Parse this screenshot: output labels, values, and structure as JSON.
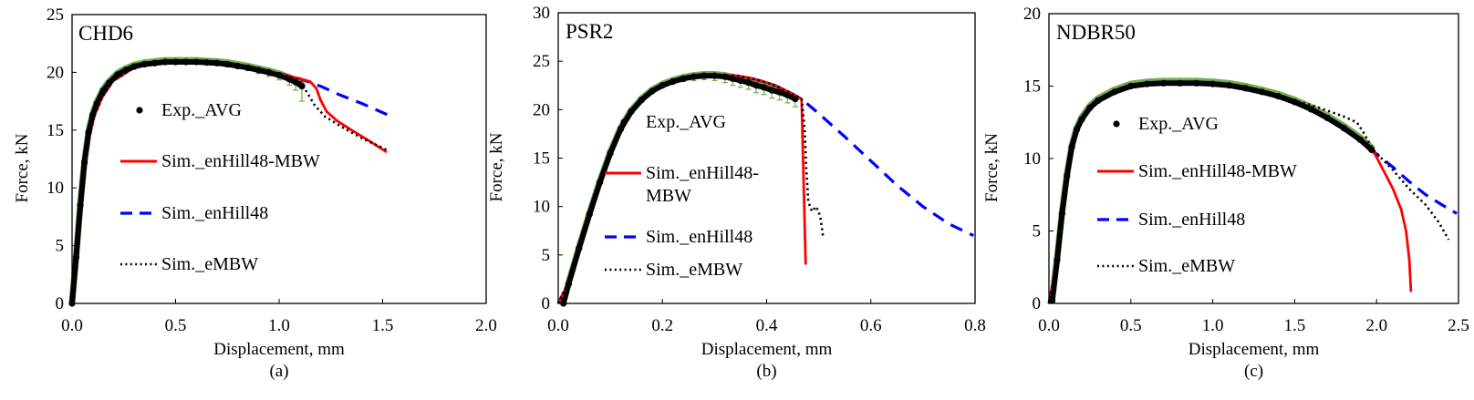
{
  "figure": {
    "legend_entries": [
      {
        "key": "exp",
        "label": "Exp._AVG",
        "style": "marker",
        "color": "#000000"
      },
      {
        "key": "mbw",
        "label": "Sim._enHill48-MBW",
        "style": "solid",
        "color": "#ff0000"
      },
      {
        "key": "hill",
        "label": "Sim._enHill48",
        "style": "dashed",
        "color": "#0000ff"
      },
      {
        "key": "embw",
        "label": "Sim._eMBW",
        "style": "dotted",
        "color": "#000000"
      }
    ],
    "errorbar_color": "#70ad47"
  },
  "chart_data": [
    {
      "type": "line",
      "title": "CHD6",
      "sublabel": "(a)",
      "xlabel": "Displacement, mm",
      "ylabel": "Force, kN",
      "xlim": [
        0,
        2.0
      ],
      "ylim": [
        0,
        25
      ],
      "xticks": [
        0,
        0.5,
        1.0,
        1.5,
        2.0
      ],
      "xtick_labels": [
        "0.0",
        "0.5",
        "1.0",
        "1.5",
        "2.0"
      ],
      "yticks": [
        0,
        5,
        10,
        15,
        20,
        25
      ],
      "ytick_labels": [
        "0",
        "5",
        "10",
        "15",
        "20",
        "25"
      ],
      "legend_labels": [
        "Exp._AVG",
        "Sim._enHill48-MBW",
        "Sim._enHill48",
        "Sim._eMBW"
      ],
      "grid": false,
      "series": [
        {
          "name": "Exp._AVG",
          "key": "exp",
          "x": [
            0.0,
            0.02,
            0.04,
            0.06,
            0.08,
            0.1,
            0.12,
            0.15,
            0.18,
            0.22,
            0.26,
            0.3,
            0.35,
            0.4,
            0.45,
            0.5,
            0.55,
            0.6,
            0.65,
            0.7,
            0.75,
            0.8,
            0.85,
            0.9,
            0.95,
            1.0,
            1.05,
            1.08,
            1.11
          ],
          "y": [
            0.0,
            4.0,
            8.5,
            12.2,
            14.8,
            16.3,
            17.3,
            18.4,
            19.1,
            19.8,
            20.2,
            20.5,
            20.7,
            20.8,
            20.9,
            20.9,
            20.9,
            20.9,
            20.85,
            20.8,
            20.7,
            20.55,
            20.4,
            20.2,
            20.0,
            19.75,
            19.4,
            19.15,
            18.8
          ],
          "yerr": [
            0,
            0,
            0,
            0,
            0,
            0,
            0,
            0,
            0,
            0,
            0,
            0,
            0,
            0,
            0,
            0,
            0,
            0,
            0,
            0,
            0.15,
            0.2,
            0.25,
            0.3,
            0.35,
            0.4,
            0.5,
            0.7,
            1.3
          ]
        },
        {
          "name": "Sim._enHill48-MBW",
          "key": "mbw",
          "x": [
            0.0,
            0.02,
            0.05,
            0.08,
            0.11,
            0.15,
            0.2,
            0.3,
            0.4,
            0.5,
            0.6,
            0.7,
            0.8,
            0.9,
            1.0,
            1.1,
            1.15,
            1.18,
            1.2,
            1.23,
            1.28,
            1.35,
            1.45,
            1.52
          ],
          "y": [
            0.0,
            4.2,
            10.0,
            14.2,
            16.4,
            18.0,
            19.3,
            20.4,
            20.8,
            20.9,
            20.9,
            20.8,
            20.6,
            20.25,
            19.9,
            19.45,
            19.2,
            18.6,
            17.6,
            16.6,
            15.8,
            15.0,
            13.9,
            13.1
          ]
        },
        {
          "name": "Sim._enHill48",
          "key": "hill",
          "x": [
            0.0,
            0.02,
            0.05,
            0.08,
            0.11,
            0.15,
            0.2,
            0.3,
            0.4,
            0.5,
            0.6,
            0.7,
            0.8,
            0.9,
            1.0,
            1.1,
            1.2,
            1.3,
            1.4,
            1.54
          ],
          "y": [
            0.0,
            4.2,
            10.0,
            14.2,
            16.4,
            18.0,
            19.3,
            20.4,
            20.8,
            20.9,
            20.9,
            20.8,
            20.6,
            20.25,
            19.9,
            19.45,
            18.8,
            18.0,
            17.3,
            16.2
          ]
        },
        {
          "name": "Sim._eMBW",
          "key": "embw",
          "x": [
            0.0,
            0.02,
            0.05,
            0.08,
            0.11,
            0.15,
            0.2,
            0.3,
            0.4,
            0.5,
            0.6,
            0.7,
            0.8,
            0.9,
            1.0,
            1.1,
            1.13,
            1.17,
            1.22,
            1.3,
            1.4,
            1.53
          ],
          "y": [
            0.0,
            4.2,
            10.0,
            14.2,
            16.4,
            18.0,
            19.3,
            20.4,
            20.8,
            20.9,
            20.9,
            20.8,
            20.6,
            20.25,
            19.9,
            19.3,
            18.4,
            17.2,
            16.2,
            15.3,
            14.3,
            13.2
          ]
        }
      ]
    },
    {
      "type": "line",
      "title": "PSR2",
      "sublabel": "(b)",
      "xlabel": "Displacement, mm",
      "ylabel": "Force, kN",
      "xlim": [
        0,
        0.8
      ],
      "ylim": [
        0,
        30
      ],
      "xticks": [
        0,
        0.2,
        0.4,
        0.6,
        0.8
      ],
      "xtick_labels": [
        "0.0",
        "0.2",
        "0.4",
        "0.6",
        "0.8"
      ],
      "yticks": [
        0,
        5,
        10,
        15,
        20,
        25,
        30
      ],
      "ytick_labels": [
        "0",
        "5",
        "10",
        "15",
        "20",
        "25",
        "30"
      ],
      "legend_labels": [
        "Exp._AVG",
        "Sim._enHill48-\nMBW",
        "Sim._enHill48",
        "Sim._eMBW"
      ],
      "grid": false,
      "series": [
        {
          "name": "Exp._AVG",
          "key": "exp",
          "x": [
            0.01,
            0.02,
            0.04,
            0.06,
            0.08,
            0.1,
            0.12,
            0.14,
            0.16,
            0.18,
            0.2,
            0.22,
            0.24,
            0.26,
            0.28,
            0.3,
            0.32,
            0.335,
            0.35,
            0.365,
            0.38,
            0.395,
            0.41,
            0.425,
            0.44,
            0.455
          ],
          "y": [
            0.0,
            2.0,
            5.7,
            9.2,
            12.5,
            15.5,
            18.0,
            19.8,
            21.0,
            21.9,
            22.5,
            22.9,
            23.2,
            23.4,
            23.5,
            23.5,
            23.4,
            23.2,
            23.0,
            22.8,
            22.5,
            22.3,
            22.0,
            21.8,
            21.5,
            21.1
          ],
          "yerr": [
            0,
            0,
            0,
            0,
            0,
            0,
            0,
            0,
            0,
            0,
            0,
            0.2,
            0.3,
            0.4,
            0.4,
            0.5,
            0.6,
            0.7,
            0.7,
            0.7,
            0.75,
            0.75,
            0.8,
            0.8,
            0.8,
            0.8
          ]
        },
        {
          "name": "Sim._enHill48-MBW",
          "key": "mbw",
          "x": [
            0.0,
            0.02,
            0.04,
            0.06,
            0.08,
            0.1,
            0.12,
            0.14,
            0.16,
            0.18,
            0.2,
            0.22,
            0.24,
            0.26,
            0.28,
            0.3,
            0.32,
            0.34,
            0.36,
            0.38,
            0.4,
            0.42,
            0.44,
            0.467,
            0.475
          ],
          "y": [
            0.0,
            2.2,
            5.8,
            9.3,
            12.6,
            15.6,
            18.0,
            19.7,
            20.9,
            21.8,
            22.4,
            22.9,
            23.2,
            23.4,
            23.5,
            23.55,
            23.55,
            23.5,
            23.35,
            23.1,
            22.8,
            22.4,
            21.9,
            21.1,
            4.0
          ]
        },
        {
          "name": "Sim._enHill48",
          "key": "hill",
          "x": [
            0.0,
            0.02,
            0.04,
            0.06,
            0.08,
            0.1,
            0.12,
            0.14,
            0.16,
            0.18,
            0.2,
            0.22,
            0.24,
            0.26,
            0.28,
            0.3,
            0.32,
            0.34,
            0.36,
            0.38,
            0.4,
            0.42,
            0.44,
            0.467,
            0.5,
            0.55,
            0.6,
            0.65,
            0.7,
            0.75,
            0.797
          ],
          "y": [
            0.0,
            2.2,
            5.8,
            9.3,
            12.6,
            15.6,
            18.0,
            19.7,
            20.9,
            21.8,
            22.4,
            22.9,
            23.2,
            23.4,
            23.5,
            23.55,
            23.55,
            23.5,
            23.35,
            23.1,
            22.8,
            22.4,
            21.9,
            21.1,
            19.6,
            17.2,
            14.7,
            12.2,
            10.0,
            8.2,
            7.0
          ]
        },
        {
          "name": "Sim._eMBW",
          "key": "embw",
          "x": [
            0.0,
            0.02,
            0.04,
            0.06,
            0.08,
            0.1,
            0.12,
            0.14,
            0.16,
            0.18,
            0.2,
            0.22,
            0.24,
            0.26,
            0.28,
            0.3,
            0.32,
            0.34,
            0.36,
            0.38,
            0.4,
            0.42,
            0.44,
            0.467,
            0.473,
            0.476,
            0.48,
            0.487,
            0.495,
            0.503,
            0.508
          ],
          "y": [
            0.0,
            2.2,
            5.8,
            9.3,
            12.6,
            15.6,
            18.0,
            19.7,
            20.9,
            21.8,
            22.4,
            22.9,
            23.2,
            23.4,
            23.5,
            23.55,
            23.55,
            23.5,
            23.35,
            23.1,
            22.8,
            22.4,
            21.9,
            21.1,
            18.0,
            14.0,
            10.5,
            9.5,
            10.0,
            9.0,
            7.0
          ]
        }
      ]
    },
    {
      "type": "line",
      "title": "NDBR50",
      "sublabel": "(c)",
      "xlabel": "Displacement, mm",
      "ylabel": "Force, kN",
      "xlim": [
        0,
        2.5
      ],
      "ylim": [
        0,
        20
      ],
      "xticks": [
        0,
        0.5,
        1.0,
        1.5,
        2.0,
        2.5
      ],
      "xtick_labels": [
        "0.0",
        "0.5",
        "1.0",
        "1.5",
        "2.0",
        "2.5"
      ],
      "yticks": [
        0,
        5,
        10,
        15,
        20
      ],
      "ytick_labels": [
        "0",
        "5",
        "10",
        "15",
        "20"
      ],
      "legend_labels": [
        "Exp._AVG",
        "Sim._enHill48-MBW",
        "Sim._enHill48",
        "Sim._eMBW"
      ],
      "grid": false,
      "series": [
        {
          "name": "Exp._AVG",
          "key": "exp",
          "x": [
            0.02,
            0.05,
            0.08,
            0.11,
            0.14,
            0.17,
            0.2,
            0.25,
            0.3,
            0.4,
            0.5,
            0.6,
            0.7,
            0.8,
            0.9,
            1.0,
            1.1,
            1.2,
            1.3,
            1.4,
            1.5,
            1.6,
            1.7,
            1.8,
            1.9,
            1.97
          ],
          "y": [
            0.2,
            3.0,
            6.2,
            8.8,
            10.8,
            12.0,
            12.7,
            13.5,
            14.0,
            14.6,
            15.0,
            15.15,
            15.2,
            15.2,
            15.2,
            15.15,
            15.05,
            14.85,
            14.6,
            14.3,
            13.9,
            13.4,
            12.8,
            12.1,
            11.3,
            10.6
          ],
          "yerr": [
            0,
            0,
            0,
            0,
            0,
            0,
            0,
            0,
            0,
            0,
            0,
            0,
            0,
            0,
            0,
            0,
            0,
            0,
            0,
            0,
            0,
            0,
            0,
            0,
            0,
            0
          ]
        },
        {
          "name": "Sim._enHill48-MBW",
          "key": "mbw",
          "x": [
            0.0,
            0.05,
            0.08,
            0.11,
            0.14,
            0.17,
            0.2,
            0.25,
            0.3,
            0.4,
            0.5,
            0.6,
            0.7,
            0.8,
            0.9,
            1.0,
            1.1,
            1.2,
            1.3,
            1.4,
            1.5,
            1.6,
            1.7,
            1.8,
            1.9,
            1.99,
            2.05,
            2.1,
            2.15,
            2.18,
            2.2,
            2.21
          ],
          "y": [
            0.0,
            3.0,
            6.2,
            8.8,
            10.8,
            12.0,
            12.7,
            13.5,
            14.0,
            14.6,
            15.0,
            15.15,
            15.2,
            15.2,
            15.2,
            15.15,
            15.05,
            14.85,
            14.6,
            14.3,
            13.9,
            13.4,
            12.8,
            12.1,
            11.3,
            10.3,
            9.0,
            7.9,
            6.5,
            5.0,
            3.0,
            0.8
          ]
        },
        {
          "name": "Sim._enHill48",
          "key": "hill",
          "x": [
            0.0,
            0.05,
            0.08,
            0.11,
            0.14,
            0.17,
            0.2,
            0.25,
            0.3,
            0.4,
            0.5,
            0.6,
            0.7,
            0.8,
            0.9,
            1.0,
            1.1,
            1.2,
            1.3,
            1.4,
            1.5,
            1.6,
            1.7,
            1.8,
            1.9,
            1.99,
            2.1,
            2.2,
            2.3,
            2.4,
            2.49
          ],
          "y": [
            0.0,
            3.0,
            6.2,
            8.8,
            10.8,
            12.0,
            12.7,
            13.5,
            14.0,
            14.6,
            15.0,
            15.15,
            15.2,
            15.2,
            15.2,
            15.15,
            15.05,
            14.85,
            14.6,
            14.3,
            13.9,
            13.4,
            12.8,
            12.1,
            11.3,
            10.4,
            9.4,
            8.4,
            7.5,
            6.8,
            6.2
          ]
        },
        {
          "name": "Sim._eMBW",
          "key": "embw",
          "x": [
            0.0,
            0.05,
            0.08,
            0.11,
            0.14,
            0.17,
            0.2,
            0.25,
            0.3,
            0.4,
            0.5,
            0.6,
            0.7,
            0.8,
            0.9,
            1.0,
            1.1,
            1.2,
            1.3,
            1.4,
            1.5,
            1.6,
            1.7,
            1.8,
            1.88,
            1.92,
            1.98,
            2.1,
            2.2,
            2.3,
            2.38,
            2.44
          ],
          "y": [
            0.0,
            3.0,
            6.2,
            8.8,
            10.8,
            12.0,
            12.7,
            13.5,
            14.0,
            14.6,
            15.0,
            15.15,
            15.2,
            15.2,
            15.2,
            15.15,
            15.05,
            14.85,
            14.6,
            14.3,
            14.0,
            13.7,
            13.3,
            12.9,
            12.5,
            11.8,
            10.6,
            9.2,
            7.9,
            6.8,
            5.6,
            4.4
          ]
        }
      ]
    }
  ]
}
